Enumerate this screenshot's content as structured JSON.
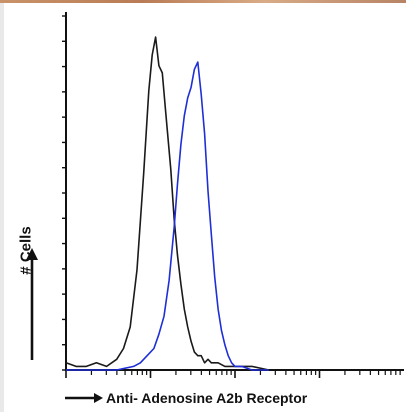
{
  "colors": {
    "control": "#1a1a1a",
    "sample": "#1f2fd6",
    "axis": "#111111",
    "top_strip": "#c08a63"
  },
  "chart_data": {
    "type": "line",
    "title": "",
    "xlabel": "Anti- Adenosine A2b Receptor",
    "ylabel": "# Cells",
    "x_scale": "log",
    "xlim": [
      0,
      100
    ],
    "ylim": [
      0,
      100
    ],
    "grid": false,
    "legend": "none",
    "series": [
      {
        "color": "#1a1a1a",
        "x": [
          0,
          3,
          6,
          9,
          12,
          15,
          17,
          19,
          21,
          23,
          24.5,
          25.5,
          26.5,
          27.5,
          28.5,
          29.5,
          31,
          32,
          33,
          34,
          35,
          36,
          37,
          38,
          39,
          40,
          41,
          42,
          43,
          45,
          47,
          50,
          55,
          60
        ],
        "y": [
          2,
          1,
          1,
          2,
          1,
          3,
          6,
          12,
          28,
          55,
          78,
          88,
          93,
          85,
          83,
          72,
          56,
          42,
          32,
          24,
          17,
          12,
          8,
          5,
          4,
          4,
          2,
          3,
          2,
          2,
          1,
          1,
          1,
          0
        ]
      },
      {
        "color": "#1f2fd6",
        "x": [
          0,
          5,
          10,
          15,
          20,
          22,
          24,
          26,
          27.5,
          29,
          30.5,
          32,
          33,
          34,
          35,
          36,
          37,
          38,
          39,
          40,
          41,
          42,
          43,
          44,
          45,
          46,
          47,
          48,
          49,
          50,
          52,
          55,
          60
        ],
        "y": [
          0,
          0,
          0,
          0,
          1,
          2,
          4,
          6,
          10,
          15,
          25,
          40,
          52,
          63,
          71,
          76,
          79,
          84,
          86,
          77,
          66,
          50,
          38,
          26,
          17,
          11,
          7,
          4,
          2,
          1,
          1,
          0,
          0
        ]
      }
    ]
  }
}
